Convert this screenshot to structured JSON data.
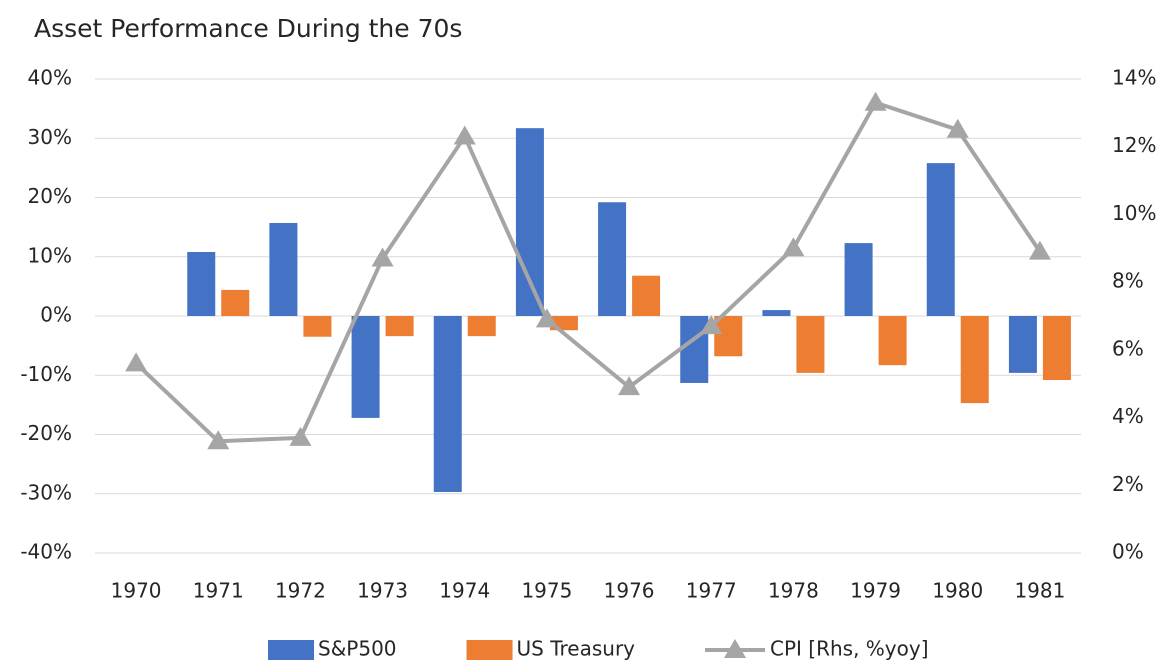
{
  "chart_data": {
    "type": "bar-line",
    "title": "Asset Performance During the 70s",
    "categories": [
      "1970",
      "1971",
      "1972",
      "1973",
      "1974",
      "1975",
      "1976",
      "1977",
      "1978",
      "1979",
      "1980",
      "1981"
    ],
    "series": [
      {
        "name": "S&P500",
        "type": "bar",
        "color": "#4472c4",
        "axis": "y",
        "values": [
          null,
          10.8,
          15.7,
          -17.2,
          -29.7,
          31.7,
          19.2,
          -11.3,
          1.0,
          12.3,
          25.8,
          -9.6
        ]
      },
      {
        "name": "US Treasury",
        "type": "bar",
        "color": "#ed7d31",
        "axis": "y",
        "values": [
          null,
          4.4,
          -3.5,
          -3.4,
          -3.4,
          -2.4,
          6.8,
          -6.8,
          -9.6,
          -8.3,
          -14.7,
          -10.8
        ]
      },
      {
        "name": "CPI [Rhs, %yoy]",
        "type": "line",
        "color": "#a5a5a5",
        "axis": "y2",
        "values": [
          5.6,
          3.3,
          3.4,
          8.7,
          12.3,
          6.9,
          4.9,
          6.7,
          9.0,
          13.3,
          12.5,
          8.9
        ]
      }
    ],
    "ylim": [
      -40,
      40
    ],
    "yticks": [
      {
        "value": -40,
        "label": "-40%"
      },
      {
        "value": -30,
        "label": "-30%"
      },
      {
        "value": -20,
        "label": "-20%"
      },
      {
        "value": -10,
        "label": "-10%"
      },
      {
        "value": 0,
        "label": "0%"
      },
      {
        "value": 10,
        "label": "10%"
      },
      {
        "value": 20,
        "label": "20%"
      },
      {
        "value": 30,
        "label": "30%"
      },
      {
        "value": 40,
        "label": "40%"
      }
    ],
    "y2lim": [
      0,
      14
    ],
    "y2ticks": [
      {
        "value": 0,
        "label": "0%"
      },
      {
        "value": 2,
        "label": "2%"
      },
      {
        "value": 4,
        "label": "4%"
      },
      {
        "value": 6,
        "label": "6%"
      },
      {
        "value": 8,
        "label": "8%"
      },
      {
        "value": 10,
        "label": "10%"
      },
      {
        "value": 12,
        "label": "12%"
      },
      {
        "value": 14,
        "label": "14%"
      }
    ],
    "grid": true,
    "legend": "bottom"
  }
}
